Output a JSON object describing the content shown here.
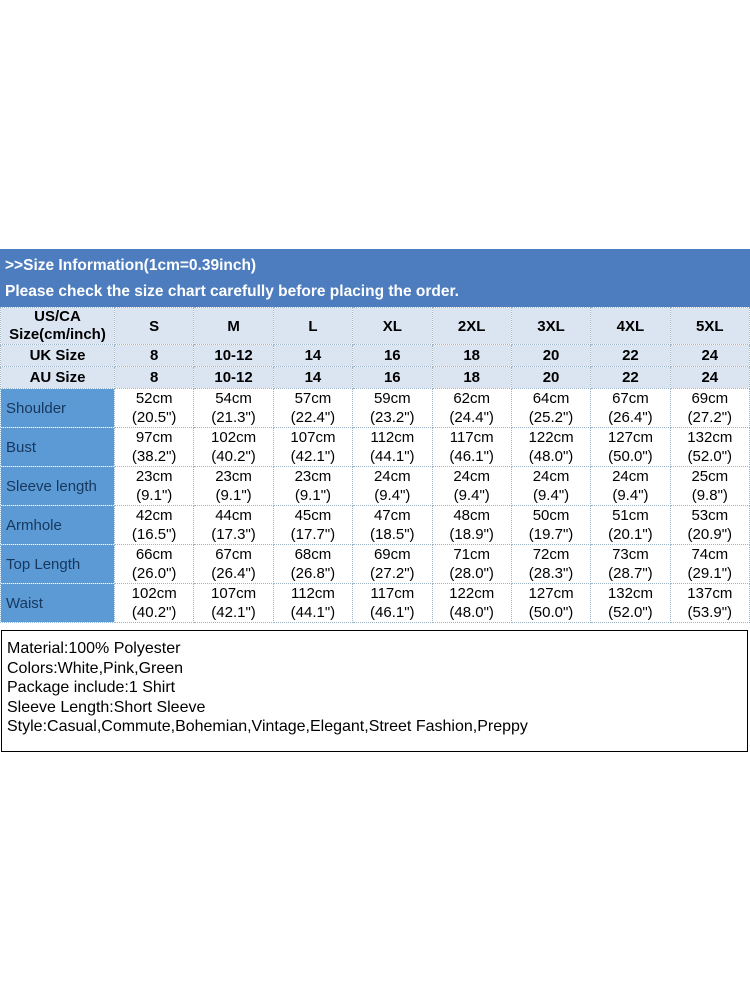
{
  "banner": {
    "title": ">>Size Information(1cm=0.39inch)",
    "subtitle": "Please check the size chart carefully before placing the order."
  },
  "size_table": {
    "corner": {
      "line1": "US/CA",
      "line2": "Size(cm/inch)"
    },
    "size_columns": [
      "S",
      "M",
      "L",
      "XL",
      "2XL",
      "3XL",
      "4XL",
      "5XL"
    ],
    "region_rows": [
      {
        "label": "UK Size",
        "values": [
          "8",
          "10-12",
          "14",
          "16",
          "18",
          "20",
          "22",
          "24"
        ]
      },
      {
        "label": "AU Size",
        "values": [
          "8",
          "10-12",
          "14",
          "16",
          "18",
          "20",
          "22",
          "24"
        ]
      }
    ],
    "measurement_rows": [
      {
        "label": "Shoulder",
        "values": [
          {
            "cm": "52cm",
            "inch": "(20.5\")"
          },
          {
            "cm": "54cm",
            "inch": "(21.3\")"
          },
          {
            "cm": "57cm",
            "inch": "(22.4\")"
          },
          {
            "cm": "59cm",
            "inch": "(23.2\")"
          },
          {
            "cm": "62cm",
            "inch": "(24.4\")"
          },
          {
            "cm": "64cm",
            "inch": "(25.2\")"
          },
          {
            "cm": "67cm",
            "inch": "(26.4\")"
          },
          {
            "cm": "69cm",
            "inch": "(27.2\")"
          }
        ]
      },
      {
        "label": "Bust",
        "values": [
          {
            "cm": "97cm",
            "inch": "(38.2\")"
          },
          {
            "cm": "102cm",
            "inch": "(40.2\")"
          },
          {
            "cm": "107cm",
            "inch": "(42.1\")"
          },
          {
            "cm": "112cm",
            "inch": "(44.1\")"
          },
          {
            "cm": "117cm",
            "inch": "(46.1\")"
          },
          {
            "cm": "122cm",
            "inch": "(48.0\")"
          },
          {
            "cm": "127cm",
            "inch": "(50.0\")"
          },
          {
            "cm": "132cm",
            "inch": "(52.0\")"
          }
        ]
      },
      {
        "label": "Sleeve length",
        "values": [
          {
            "cm": "23cm",
            "inch": "(9.1\")"
          },
          {
            "cm": "23cm",
            "inch": "(9.1\")"
          },
          {
            "cm": "23cm",
            "inch": "(9.1\")"
          },
          {
            "cm": "24cm",
            "inch": "(9.4\")"
          },
          {
            "cm": "24cm",
            "inch": "(9.4\")"
          },
          {
            "cm": "24cm",
            "inch": "(9.4\")"
          },
          {
            "cm": "24cm",
            "inch": "(9.4\")"
          },
          {
            "cm": "25cm",
            "inch": "(9.8\")"
          }
        ]
      },
      {
        "label": "Armhole",
        "values": [
          {
            "cm": "42cm",
            "inch": "(16.5\")"
          },
          {
            "cm": "44cm",
            "inch": "(17.3\")"
          },
          {
            "cm": "45cm",
            "inch": "(17.7\")"
          },
          {
            "cm": "47cm",
            "inch": "(18.5\")"
          },
          {
            "cm": "48cm",
            "inch": "(18.9\")"
          },
          {
            "cm": "50cm",
            "inch": "(19.7\")"
          },
          {
            "cm": "51cm",
            "inch": "(20.1\")"
          },
          {
            "cm": "53cm",
            "inch": "(20.9\")"
          }
        ]
      },
      {
        "label": "Top Length",
        "values": [
          {
            "cm": "66cm",
            "inch": "(26.0\")"
          },
          {
            "cm": "67cm",
            "inch": "(26.4\")"
          },
          {
            "cm": "68cm",
            "inch": "(26.8\")"
          },
          {
            "cm": "69cm",
            "inch": "(27.2\")"
          },
          {
            "cm": "71cm",
            "inch": "(28.0\")"
          },
          {
            "cm": "72cm",
            "inch": "(28.3\")"
          },
          {
            "cm": "73cm",
            "inch": "(28.7\")"
          },
          {
            "cm": "74cm",
            "inch": "(29.1\")"
          }
        ]
      },
      {
        "label": "Waist",
        "values": [
          {
            "cm": "102cm",
            "inch": "(40.2\")"
          },
          {
            "cm": "107cm",
            "inch": "(42.1\")"
          },
          {
            "cm": "112cm",
            "inch": "(44.1\")"
          },
          {
            "cm": "117cm",
            "inch": "(46.1\")"
          },
          {
            "cm": "122cm",
            "inch": "(48.0\")"
          },
          {
            "cm": "127cm",
            "inch": "(50.0\")"
          },
          {
            "cm": "132cm",
            "inch": "(52.0\")"
          },
          {
            "cm": "137cm",
            "inch": "(53.9\")"
          }
        ]
      }
    ]
  },
  "details": {
    "lines": [
      "Material:100% Polyester",
      "Colors:White,Pink,Green",
      "Package include:1 Shirt",
      "Sleeve Length:Short Sleeve",
      "Style:Casual,Commute,Bohemian,Vintage,Elegant,Street Fashion,Preppy"
    ]
  },
  "colors": {
    "page_bg": "#ffffff",
    "banner_bg": "#4d7dbe",
    "banner_text": "#ffffff",
    "header_row_bg": "#dbe5f1",
    "label_cell_bg": "#5b9ad5",
    "label_text": "#17375d",
    "cell_border": "#9db3c7",
    "details_border": "#000000"
  }
}
